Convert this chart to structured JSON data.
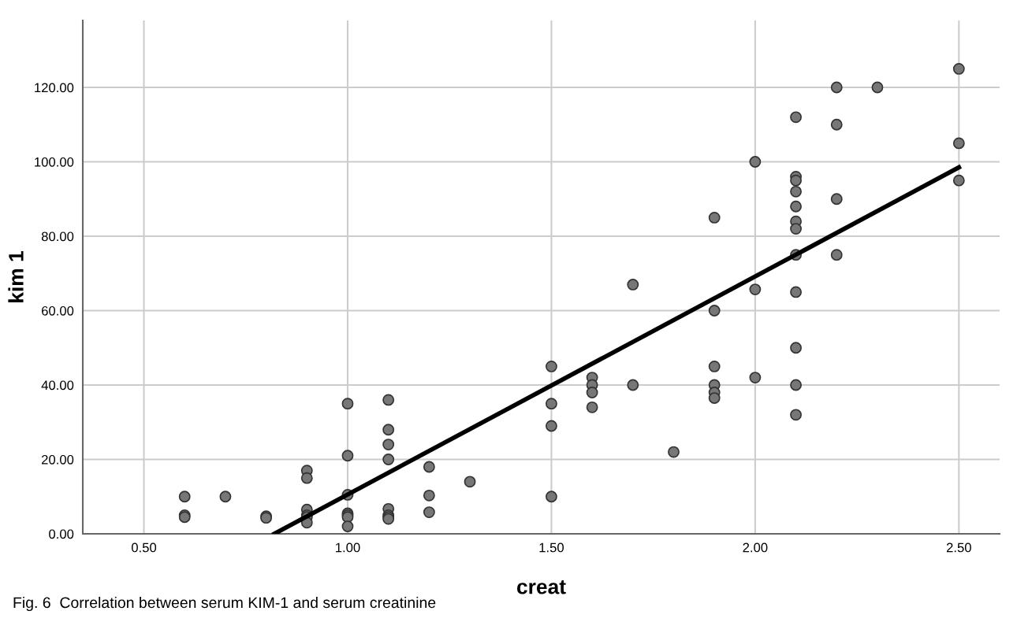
{
  "chart_data": {
    "type": "scatter",
    "xlabel": "creat",
    "ylabel": "kim 1",
    "annotations": [
      "Fig. 6  Correlation between serum KIM-1 and serum creatinine"
    ],
    "xlim": [
      0.35,
      2.6
    ],
    "ylim": [
      0,
      138
    ],
    "xticks": [
      {
        "value": 0.5,
        "label": "0.50"
      },
      {
        "value": 1.0,
        "label": "1.00"
      },
      {
        "value": 1.5,
        "label": "1.50"
      },
      {
        "value": 2.0,
        "label": "2.00"
      },
      {
        "value": 2.5,
        "label": "2.50"
      }
    ],
    "yticks": [
      {
        "value": 0,
        "label": "0.00"
      },
      {
        "value": 20,
        "label": "20.00"
      },
      {
        "value": 40,
        "label": "40.00"
      },
      {
        "value": 60,
        "label": "60.00"
      },
      {
        "value": 80,
        "label": "80.00"
      },
      {
        "value": 100,
        "label": "100.00"
      },
      {
        "value": 120,
        "label": "120.00"
      }
    ],
    "grid": true,
    "marker": "circle",
    "series": [
      {
        "color": "#777777",
        "x": [
          0.6,
          0.6,
          0.6,
          0.7,
          0.8,
          0.8,
          0.9,
          0.9,
          0.9,
          0.9,
          0.9,
          0.9,
          1.0,
          1.0,
          1.0,
          1.0,
          1.0,
          1.0,
          1.0,
          1.1,
          1.1,
          1.1,
          1.1,
          1.1,
          1.1,
          1.1,
          1.1,
          1.2,
          1.2,
          1.2,
          1.3,
          1.5,
          1.5,
          1.5,
          1.5,
          1.6,
          1.6,
          1.6,
          1.6,
          1.7,
          1.7,
          1.8,
          1.9,
          1.9,
          1.9,
          1.9,
          1.9,
          1.9,
          2.0,
          2.0,
          2.0,
          2.1,
          2.1,
          2.1,
          2.1,
          2.1,
          2.1,
          2.1,
          2.1,
          2.1,
          2.1,
          2.1,
          2.1,
          2.2,
          2.2,
          2.2,
          2.2,
          2.3,
          2.5,
          2.5,
          2.5
        ],
        "values": [
          10,
          5,
          4.5,
          10,
          4.7,
          4.3,
          17,
          15,
          6.5,
          5,
          4.5,
          3,
          35,
          21,
          10.5,
          5.5,
          5,
          4.5,
          2,
          36,
          28,
          24,
          20,
          6.7,
          5,
          4.5,
          4,
          18,
          10.3,
          5.8,
          14,
          45,
          35,
          29,
          10,
          42,
          40,
          38,
          34,
          67,
          40,
          22,
          85,
          60,
          45,
          40,
          38,
          36.5,
          100,
          65.7,
          42,
          112,
          96,
          95,
          92,
          88,
          84,
          82,
          75,
          65,
          50,
          40,
          32,
          120,
          110,
          90,
          75,
          120,
          125,
          105,
          95
        ]
      },
      {
        "type": "line",
        "color": "#000000",
        "line_style": "solid",
        "marker": "none",
        "x": [
          0.82,
          2.5
        ],
        "values": [
          0,
          98.5
        ]
      }
    ]
  }
}
